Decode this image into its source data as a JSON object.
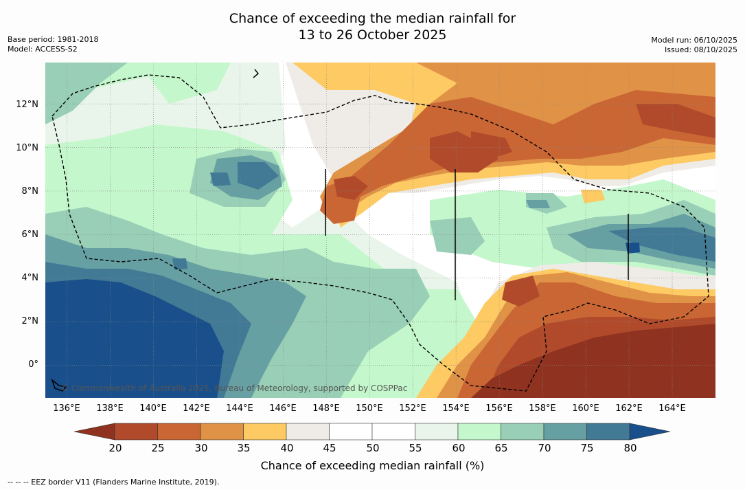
{
  "title": {
    "line1": "Chance of exceeding the median rainfall for",
    "line2": "13 to 26 October 2025"
  },
  "meta_left": {
    "base_period": "Base period: 1981-2018",
    "model": "Model: ACCESS-S2"
  },
  "meta_right": {
    "model_run": "Model run: 06/10/2025",
    "issued": "Issued: 08/10/2025"
  },
  "map": {
    "lon_range": [
      135,
      166
    ],
    "lat_range": [
      -1.5,
      13.9
    ],
    "x_ticks": [
      "136°E",
      "138°E",
      "140°E",
      "142°E",
      "144°E",
      "146°E",
      "148°E",
      "150°E",
      "152°E",
      "154°E",
      "156°E",
      "158°E",
      "160°E",
      "162°E",
      "164°E"
    ],
    "x_tick_values": [
      136,
      138,
      140,
      142,
      144,
      146,
      148,
      150,
      152,
      154,
      156,
      158,
      160,
      162,
      164
    ],
    "y_ticks": [
      "12°N",
      "10°N",
      "8°N",
      "6°N",
      "4°N",
      "2°N",
      "0°"
    ],
    "y_tick_values": [
      12,
      10,
      8,
      6,
      4,
      2,
      0
    ],
    "copyright": "© Commonwealth of Australia 2025, Bureau of Meteorology, supported by COSPPac"
  },
  "colorbar": {
    "ticks": [
      "20",
      "25",
      "30",
      "35",
      "40",
      "45",
      "50",
      "55",
      "60",
      "65",
      "70",
      "75",
      "80"
    ],
    "colors": [
      "#8f3320",
      "#b04a2a",
      "#c96634",
      "#e09346",
      "#fdca63",
      "#efece7",
      "#ffffff",
      "#ffffff",
      "#e9f5ea",
      "#c4f7cb",
      "#99cfb6",
      "#67a0a3",
      "#427a95",
      "#194f8a"
    ],
    "label": "Chance of exceeding median rainfall (%)"
  },
  "footer": "--  --  -- EEZ border V11 (Flanders Marine Institute, 2019)."
}
